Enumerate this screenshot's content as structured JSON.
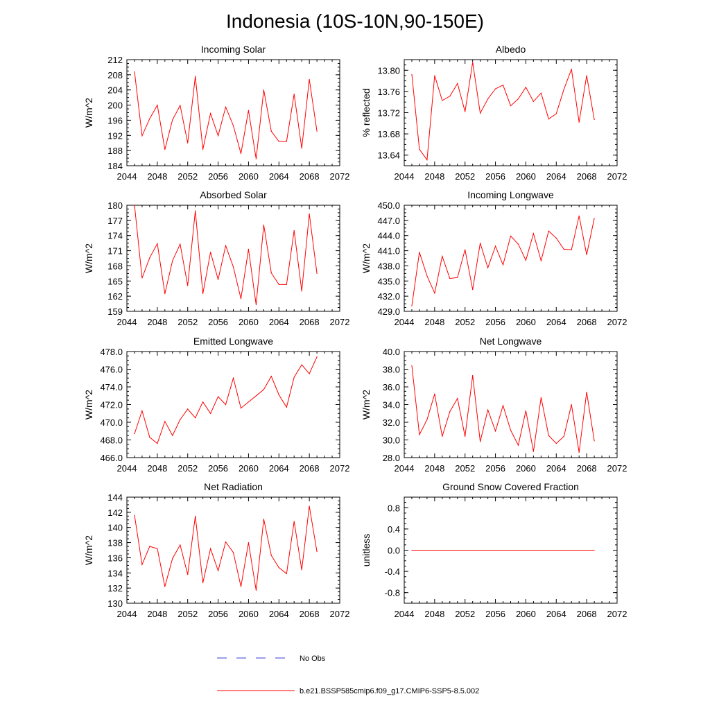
{
  "figure_title": "Indonesia (10S-10N,90-150E)",
  "colors": {
    "model": "#ff0000",
    "obs": "#3b3bd6",
    "axis": "#000000"
  },
  "legend": {
    "obs_label": "No Obs",
    "model_label": "b.e21.BSSP585cmip6.f09_g17.CMIP6-SSP5-8.5.002"
  },
  "chart_data": [
    {
      "type": "line",
      "title": "Incoming Solar",
      "ylabel": "W/m^2",
      "xlim": [
        2044,
        2072
      ],
      "ylim": [
        184,
        212
      ],
      "xticks": [
        2044,
        2048,
        2052,
        2056,
        2060,
        2064,
        2068,
        2072
      ],
      "xtick_labels": [
        "2044",
        "2048",
        "2052",
        "2056",
        "2060",
        "2064",
        "2068",
        "2072"
      ],
      "yticks": [
        184,
        188,
        192,
        196,
        200,
        204,
        208,
        212
      ],
      "ytick_labels": [
        "184",
        "188",
        "192",
        "196",
        "200",
        "204",
        "208",
        "212"
      ],
      "x": [
        2045,
        2046,
        2047,
        2048,
        2049,
        2050,
        2051,
        2052,
        2053,
        2054,
        2055,
        2056,
        2057,
        2058,
        2059,
        2060,
        2061,
        2062,
        2063,
        2064,
        2065,
        2066,
        2067,
        2068,
        2069
      ],
      "y": [
        208.8,
        191.9,
        196.4,
        200.0,
        188.3,
        196.1,
        199.9,
        190.0,
        207.6,
        188.3,
        197.8,
        191.9,
        199.5,
        194.6,
        187.2,
        198.6,
        185.8,
        204.0,
        193.1,
        190.4,
        190.4,
        202.9,
        188.6,
        206.8,
        193.1
      ]
    },
    {
      "type": "line",
      "title": "Albedo",
      "ylabel": "% reflected",
      "xlim": [
        2044,
        2072
      ],
      "ylim": [
        13.62,
        13.82
      ],
      "xticks": [
        2044,
        2048,
        2052,
        2056,
        2060,
        2064,
        2068,
        2072
      ],
      "xtick_labels": [
        "2044",
        "2048",
        "2052",
        "2056",
        "2060",
        "2064",
        "2068",
        "2072"
      ],
      "yticks": [
        13.64,
        13.68,
        13.72,
        13.76,
        13.8
      ],
      "ytick_labels": [
        "13.64",
        "13.68",
        "13.72",
        "13.76",
        "13.80"
      ],
      "x": [
        2045,
        2046,
        2047,
        2048,
        2049,
        2050,
        2051,
        2052,
        2053,
        2054,
        2055,
        2056,
        2057,
        2058,
        2059,
        2060,
        2061,
        2062,
        2063,
        2064,
        2065,
        2066,
        2067,
        2068,
        2069
      ],
      "y": [
        13.792,
        13.651,
        13.631,
        13.79,
        13.743,
        13.751,
        13.775,
        13.722,
        13.815,
        13.719,
        13.746,
        13.765,
        13.772,
        13.733,
        13.746,
        13.768,
        13.741,
        13.757,
        13.708,
        13.718,
        13.764,
        13.802,
        13.702,
        13.79,
        13.707
      ]
    },
    {
      "type": "line",
      "title": "Absorbed Solar",
      "ylabel": "W/m^2",
      "xlim": [
        2044,
        2072
      ],
      "ylim": [
        159,
        180
      ],
      "xticks": [
        2044,
        2048,
        2052,
        2056,
        2060,
        2064,
        2068,
        2072
      ],
      "xtick_labels": [
        "2044",
        "2048",
        "2052",
        "2056",
        "2060",
        "2064",
        "2068",
        "2072"
      ],
      "yticks": [
        159,
        162,
        165,
        168,
        171,
        174,
        177,
        180
      ],
      "ytick_labels": [
        "159",
        "162",
        "165",
        "168",
        "171",
        "174",
        "177",
        "180"
      ],
      "x": [
        2045,
        2046,
        2047,
        2048,
        2049,
        2050,
        2051,
        2052,
        2053,
        2054,
        2055,
        2056,
        2057,
        2058,
        2059,
        2060,
        2061,
        2062,
        2063,
        2064,
        2065,
        2066,
        2067,
        2068,
        2069
      ],
      "y": [
        180.0,
        165.6,
        169.6,
        172.4,
        162.5,
        169.0,
        172.3,
        164.1,
        178.9,
        162.5,
        170.7,
        165.3,
        172.0,
        167.8,
        161.5,
        171.3,
        160.3,
        176.1,
        166.6,
        164.3,
        164.3,
        175.0,
        163.0,
        178.3,
        166.5
      ]
    },
    {
      "type": "line",
      "title": "Incoming Longwave",
      "ylabel": "W/m^2",
      "xlim": [
        2044,
        2072
      ],
      "ylim": [
        429,
        450
      ],
      "xticks": [
        2044,
        2048,
        2052,
        2056,
        2060,
        2064,
        2068,
        2072
      ],
      "xtick_labels": [
        "2044",
        "2048",
        "2052",
        "2056",
        "2060",
        "2064",
        "2068",
        "2072"
      ],
      "yticks": [
        429,
        432,
        435,
        438,
        441,
        444,
        447,
        450
      ],
      "ytick_labels": [
        "429.0",
        "432.0",
        "435.0",
        "438.0",
        "441.0",
        "444.0",
        "447.0",
        "450.0"
      ],
      "x": [
        2045,
        2046,
        2047,
        2048,
        2049,
        2050,
        2051,
        2052,
        2053,
        2054,
        2055,
        2056,
        2057,
        2058,
        2059,
        2060,
        2061,
        2062,
        2063,
        2064,
        2065,
        2066,
        2067,
        2068,
        2069
      ],
      "y": [
        430.1,
        440.7,
        436.0,
        432.6,
        439.9,
        435.5,
        435.7,
        441.2,
        433.3,
        442.5,
        437.6,
        441.9,
        438.2,
        443.9,
        442.3,
        439.1,
        444.4,
        439.0,
        444.9,
        443.5,
        441.3,
        441.2,
        447.9,
        440.2,
        447.4
      ]
    },
    {
      "type": "line",
      "title": "Emitted Longwave",
      "ylabel": "W/m^2",
      "xlim": [
        2044,
        2072
      ],
      "ylim": [
        466,
        478
      ],
      "xticks": [
        2044,
        2048,
        2052,
        2056,
        2060,
        2064,
        2068,
        2072
      ],
      "xtick_labels": [
        "2044",
        "2048",
        "2052",
        "2056",
        "2060",
        "2064",
        "2068",
        "2072"
      ],
      "yticks": [
        466,
        468,
        470,
        472,
        474,
        476,
        478
      ],
      "ytick_labels": [
        "466.0",
        "468.0",
        "470.0",
        "472.0",
        "474.0",
        "476.0",
        "478.0"
      ],
      "x": [
        2045,
        2046,
        2047,
        2048,
        2049,
        2050,
        2051,
        2052,
        2053,
        2054,
        2055,
        2056,
        2057,
        2058,
        2059,
        2060,
        2061,
        2062,
        2063,
        2064,
        2065,
        2066,
        2067,
        2068,
        2069
      ],
      "y": [
        468.7,
        471.3,
        468.3,
        467.6,
        470.1,
        468.5,
        470.3,
        471.5,
        470.5,
        472.3,
        471.0,
        472.9,
        472.0,
        475.0,
        471.6,
        472.3,
        473.0,
        473.7,
        475.2,
        473.1,
        471.7,
        475.1,
        476.5,
        475.5,
        477.4
      ]
    },
    {
      "type": "line",
      "title": "Net Longwave",
      "ylabel": "W/m^2",
      "xlim": [
        2044,
        2072
      ],
      "ylim": [
        28,
        40
      ],
      "xticks": [
        2044,
        2048,
        2052,
        2056,
        2060,
        2064,
        2068,
        2072
      ],
      "xtick_labels": [
        "2044",
        "2048",
        "2052",
        "2056",
        "2060",
        "2064",
        "2068",
        "2072"
      ],
      "yticks": [
        28,
        30,
        32,
        34,
        36,
        38,
        40
      ],
      "ytick_labels": [
        "28.0",
        "30.0",
        "32.0",
        "34.0",
        "36.0",
        "38.0",
        "40.0"
      ],
      "x": [
        2045,
        2046,
        2047,
        2048,
        2049,
        2050,
        2051,
        2052,
        2053,
        2054,
        2055,
        2056,
        2057,
        2058,
        2059,
        2060,
        2061,
        2062,
        2063,
        2064,
        2065,
        2066,
        2067,
        2068,
        2069
      ],
      "y": [
        38.4,
        30.6,
        32.3,
        35.2,
        30.4,
        33.2,
        34.7,
        30.4,
        37.3,
        29.8,
        33.4,
        31.0,
        33.9,
        31.1,
        29.4,
        33.3,
        28.7,
        34.8,
        30.5,
        29.6,
        30.4,
        34.0,
        28.6,
        35.4,
        29.9
      ]
    },
    {
      "type": "line",
      "title": "Net Radiation",
      "ylabel": "W/m^2",
      "xlim": [
        2044,
        2072
      ],
      "ylim": [
        130,
        144
      ],
      "xticks": [
        2044,
        2048,
        2052,
        2056,
        2060,
        2064,
        2068,
        2072
      ],
      "xtick_labels": [
        "2044",
        "2048",
        "2052",
        "2056",
        "2060",
        "2064",
        "2068",
        "2072"
      ],
      "yticks": [
        130,
        132,
        134,
        136,
        138,
        140,
        142,
        144
      ],
      "ytick_labels": [
        "130",
        "132",
        "134",
        "136",
        "138",
        "140",
        "142",
        "144"
      ],
      "x": [
        2045,
        2046,
        2047,
        2048,
        2049,
        2050,
        2051,
        2052,
        2053,
        2054,
        2055,
        2056,
        2057,
        2058,
        2059,
        2060,
        2061,
        2062,
        2063,
        2064,
        2065,
        2066,
        2067,
        2068,
        2069
      ],
      "y": [
        141.6,
        135.1,
        137.5,
        137.2,
        132.2,
        135.9,
        137.7,
        133.8,
        141.5,
        132.7,
        137.2,
        134.3,
        138.1,
        136.7,
        132.2,
        138.0,
        131.7,
        141.1,
        136.3,
        134.7,
        133.9,
        140.8,
        134.4,
        142.8,
        136.8
      ]
    },
    {
      "type": "line",
      "title": "Ground Snow Covered Fraction",
      "ylabel": "unitless",
      "xlim": [
        2044,
        2072
      ],
      "ylim": [
        -1.0,
        1.0
      ],
      "xticks": [
        2044,
        2048,
        2052,
        2056,
        2060,
        2064,
        2068,
        2072
      ],
      "xtick_labels": [
        "2044",
        "2048",
        "2052",
        "2056",
        "2060",
        "2064",
        "2068",
        "2072"
      ],
      "yticks": [
        -0.8,
        -0.4,
        0.0,
        0.4,
        0.8
      ],
      "ytick_labels": [
        "-0.8",
        "-0.4",
        "0.0",
        "0.4",
        "0.8"
      ],
      "x": [
        2045,
        2069
      ],
      "y": [
        0.0,
        0.0
      ]
    }
  ]
}
